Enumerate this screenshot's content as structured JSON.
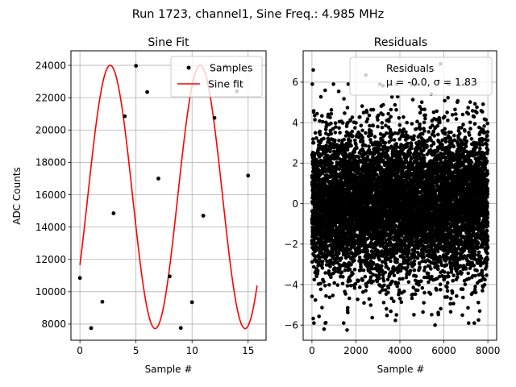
{
  "figure": {
    "suptitle": "Run 1723, channel1, Sine Freq.: 4.985 MHz"
  },
  "chart_data": [
    {
      "type": "scatter",
      "title": "Sine Fit",
      "xlabel": "Sample #",
      "ylabel": "ADC Counts",
      "xlim": [
        -0.8,
        16.6
      ],
      "ylim": [
        7000,
        24900
      ],
      "xticks": [
        0,
        5,
        10,
        15
      ],
      "yticks": [
        8000,
        10000,
        12000,
        14000,
        16000,
        18000,
        20000,
        22000,
        24000
      ],
      "grid": true,
      "legend_position": "top-right",
      "series": [
        {
          "name": "Samples",
          "kind": "scatter",
          "color": "#000000",
          "x": [
            0,
            1,
            2,
            3,
            4,
            5,
            6,
            7,
            8,
            9,
            10,
            11,
            12,
            13,
            14,
            15
          ],
          "y": [
            10850,
            7750,
            9380,
            14850,
            20850,
            23970,
            22350,
            17000,
            10950,
            7760,
            9350,
            14700,
            20750,
            23950,
            22400,
            17180
          ]
        },
        {
          "name": "Sine fit",
          "kind": "line",
          "color": "#ff0000",
          "model": {
            "amplitude": 8140,
            "offset": 15860,
            "frequency": 0.12463,
            "phase": -0.5436,
            "x_start": 0,
            "x_end": 15.8
          }
        }
      ]
    },
    {
      "type": "scatter",
      "title": "Residuals",
      "xlabel": "Sample #",
      "ylabel": "",
      "xlim": [
        -400,
        8400
      ],
      "ylim": [
        -6.75,
        7.55
      ],
      "xticks": [
        0,
        2000,
        4000,
        6000,
        8000
      ],
      "yticks": [
        -6,
        -4,
        -2,
        0,
        2,
        4,
        6
      ],
      "grid": true,
      "legend_position": "top-right",
      "series": [
        {
          "name": "Residuals",
          "kind": "scatter",
          "color": "#000000",
          "sample_count": 8000,
          "x_range": [
            0,
            8000
          ],
          "mean": -0.0,
          "std": 1.83,
          "extremes": [
            [
              60,
              6.6
            ],
            [
              2450,
              6.35
            ],
            [
              5850,
              6.9
            ],
            [
              600,
              5.6
            ],
            [
              1600,
              -6.25
            ],
            [
              550,
              -6.2
            ],
            [
              5600,
              -6.0
            ]
          ]
        }
      ],
      "legend_label": "Residuals",
      "legend_stats": "μ = -0.0, σ = 1.83"
    }
  ]
}
